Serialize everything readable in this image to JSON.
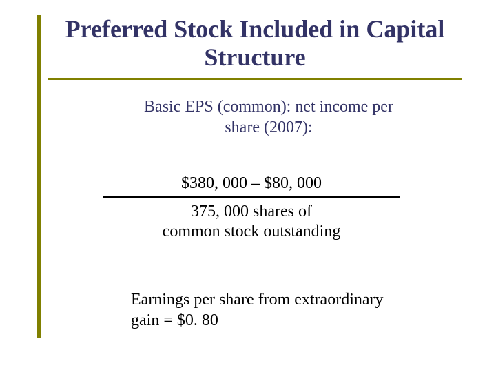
{
  "colors": {
    "accent": "#808000",
    "title": "#333366",
    "body": "#333366",
    "text": "#000000",
    "background": "#ffffff"
  },
  "title": "Preferred Stock Included in Capital Structure",
  "subtitle_line1": "Basic EPS (common): net income per",
  "subtitle_line2": "share (2007):",
  "numerator": "$380, 000 – $80, 000",
  "denominator_line1": "375, 000 shares of",
  "denominator_line2": "common stock outstanding",
  "footer_line1": "Earnings per share from extraordinary",
  "footer_line2": "gain = $0. 80"
}
